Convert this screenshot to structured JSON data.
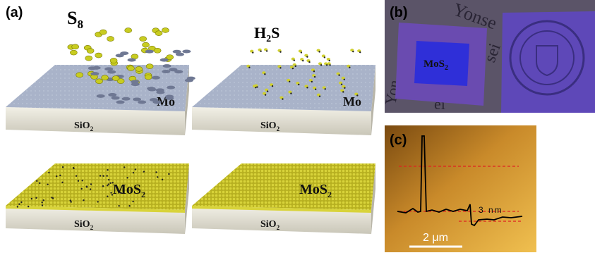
{
  "panel_a": {
    "label": "(a)",
    "s8": {
      "text": "S",
      "sub": "8"
    },
    "h2s": {
      "text": "H",
      "sub": "2",
      "tail": "S"
    },
    "slabs": [
      {
        "film": {
          "text": "Mo"
        },
        "substrate": {
          "text": "SiO",
          "sub": "2"
        }
      },
      {
        "film": {
          "text": "Mo"
        },
        "substrate": {
          "text": "SiO",
          "sub": "2"
        }
      },
      {
        "film": {
          "text": "MoS",
          "sub": "2"
        },
        "substrate": {
          "text": "SiO",
          "sub": "2"
        }
      },
      {
        "film": {
          "text": "MoS",
          "sub": "2"
        },
        "substrate": {
          "text": "SiO",
          "sub": "2"
        }
      }
    ]
  },
  "panel_b": {
    "label": "(b)",
    "sample": {
      "text": "MoS",
      "sub": "2"
    },
    "background_text": [
      "Yonse",
      "sei",
      "Yon",
      "ei"
    ]
  },
  "panel_c": {
    "label": "(c)",
    "height": "3 nm",
    "scale_bar": "2 μm"
  }
}
